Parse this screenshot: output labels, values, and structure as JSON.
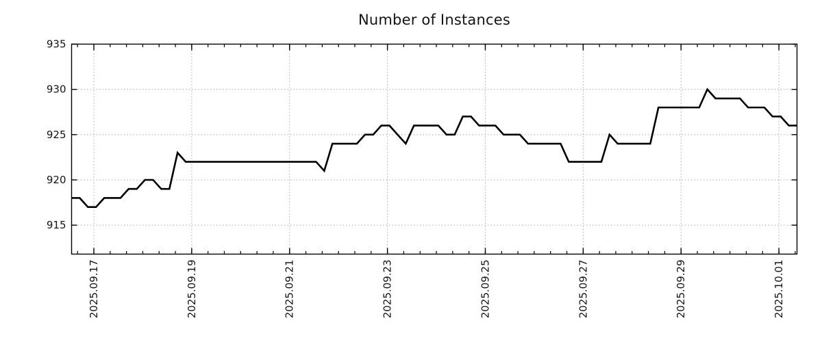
{
  "chart_data": {
    "type": "line",
    "title": "Number of Instances",
    "xlabel": "",
    "ylabel": "",
    "x_tick_labels": [
      "2025.09.17",
      "2025.09.19",
      "2025.09.21",
      "2025.09.23",
      "2025.09.25",
      "2025.09.27",
      "2025.09.29",
      "2025.10.01"
    ],
    "x_tick_days": [
      0,
      2,
      4,
      6,
      8,
      10,
      12,
      14
    ],
    "minor_tick_interval_days": 0.33333,
    "xlim_days": [
      -0.455,
      14.37
    ],
    "y_ticks": [
      915,
      920,
      925,
      930,
      935
    ],
    "ylim": [
      911.8,
      935
    ],
    "grid": true,
    "grid_style": "dotted",
    "legend": "none",
    "series": [
      {
        "name": "Number of Instances",
        "start_day_offset": -0.455,
        "interval_hours": 4,
        "values": [
          918,
          918,
          917,
          917,
          918,
          918,
          918,
          919,
          919,
          920,
          920,
          919,
          919,
          923,
          922,
          922,
          922,
          922,
          922,
          922,
          922,
          922,
          922,
          922,
          922,
          922,
          922,
          922,
          922,
          922,
          922,
          921,
          924,
          924,
          924,
          924,
          925,
          925,
          926,
          926,
          925,
          924,
          926,
          926,
          926,
          926,
          925,
          925,
          927,
          927,
          926,
          926,
          926,
          925,
          925,
          925,
          924,
          924,
          924,
          924,
          924,
          922,
          922,
          922,
          922,
          922,
          925,
          924,
          924,
          924,
          924,
          924,
          928,
          928,
          928,
          928,
          928,
          928,
          930,
          929,
          929,
          929,
          929,
          928,
          928,
          928,
          927,
          927,
          926,
          926
        ]
      }
    ]
  },
  "style": {
    "line_color": "#000000",
    "line_width": 2.6,
    "grid_color": "#a9a9a9",
    "axis_color": "#000000",
    "text_color": "#141414",
    "background": "#ffffff",
    "tick_font_size": 15,
    "title_font_size": 21
  }
}
